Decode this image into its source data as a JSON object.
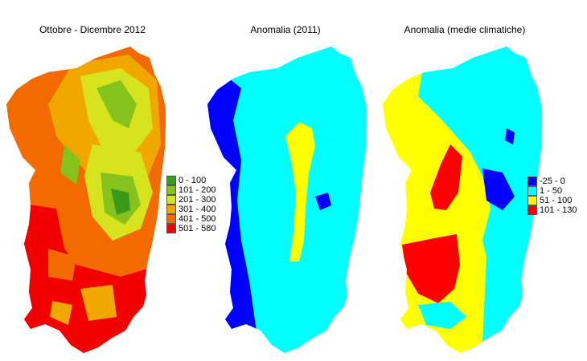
{
  "panels": [
    {
      "title": "Ottobre - Dicembre 2012",
      "legend": [
        {
          "label": "0 - 100",
          "color": "#3a9a1a"
        },
        {
          "label": "101 - 200",
          "color": "#86c21c"
        },
        {
          "label": "201 - 300",
          "color": "#d7e31e"
        },
        {
          "label": "301 - 400",
          "color": "#f0a800"
        },
        {
          "label": "401 - 500",
          "color": "#f26a00"
        },
        {
          "label": "501 - 580",
          "color": "#f20000"
        }
      ]
    },
    {
      "title": "Anomalia (2011)",
      "legend": []
    },
    {
      "title": "Anomalia (medie climatiche)",
      "legend": [
        {
          "label": "-25 - 0",
          "color": "#0000ff"
        },
        {
          "label": "1 - 50",
          "color": "#00ffff"
        },
        {
          "label": "51 - 100",
          "color": "#ffff00"
        },
        {
          "label": "101 - 130",
          "color": "#ff0000"
        }
      ]
    }
  ]
}
